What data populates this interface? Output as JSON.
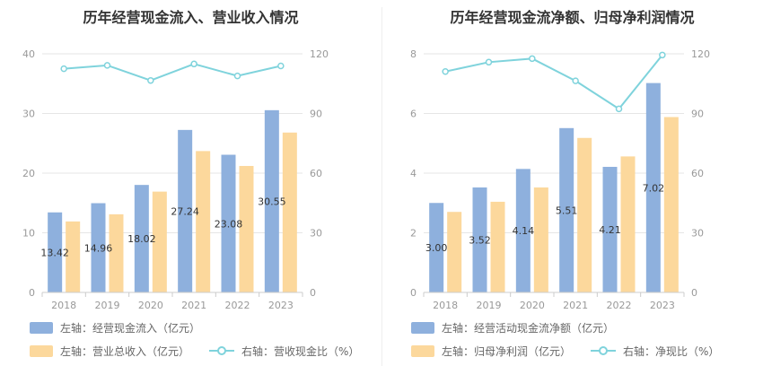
{
  "chart_data": [
    {
      "type": "bar",
      "title": "历年经营现金流入、营业收入情况",
      "categories": [
        "2018",
        "2019",
        "2020",
        "2021",
        "2022",
        "2023"
      ],
      "left_axis": {
        "ticks": [
          "0",
          "10",
          "20",
          "30",
          "40"
        ],
        "ylim": [
          0,
          40
        ]
      },
      "right_axis": {
        "ticks": [
          "0",
          "30",
          "60",
          "90",
          "120"
        ],
        "ylim": [
          0,
          120
        ]
      },
      "grid": true,
      "legend_position": "bottom",
      "series": [
        {
          "name": "左轴：经营现金流入（亿元）",
          "type": "bar",
          "axis": "left",
          "color": "#8eb0dd",
          "values": [
            13.42,
            14.96,
            18.02,
            27.24,
            23.08,
            30.55
          ],
          "labels": [
            "13.42",
            "14.96",
            "18.02",
            "27.24",
            "23.08",
            "30.55"
          ]
        },
        {
          "name": "左轴：营业总收入（亿元）",
          "type": "bar",
          "axis": "left",
          "color": "#fcd89c",
          "values": [
            11.9,
            13.1,
            16.9,
            23.7,
            21.2,
            26.8
          ]
        },
        {
          "name": "右轴：营收现金比（%）",
          "type": "line",
          "axis": "right",
          "color": "#7fd3dc",
          "values": [
            112.5,
            114.2,
            106.6,
            114.9,
            108.9,
            113.9
          ]
        }
      ]
    },
    {
      "type": "bar",
      "title": "历年经营现金流净额、归母净利润情况",
      "categories": [
        "2018",
        "2019",
        "2020",
        "2021",
        "2022",
        "2023"
      ],
      "left_axis": {
        "ticks": [
          "0",
          "2",
          "4",
          "6",
          "8"
        ],
        "ylim": [
          0,
          8
        ]
      },
      "right_axis": {
        "ticks": [
          "0",
          "30",
          "60",
          "90",
          "120"
        ],
        "ylim": [
          0,
          120
        ]
      },
      "grid": true,
      "legend_position": "bottom",
      "series": [
        {
          "name": "左轴：经营活动现金流净额（亿元）",
          "type": "bar",
          "axis": "left",
          "color": "#8eb0dd",
          "values": [
            3.0,
            3.52,
            4.14,
            5.51,
            4.21,
            7.02
          ],
          "labels": [
            "3.00",
            "3.52",
            "4.14",
            "5.51",
            "4.21",
            "7.02"
          ]
        },
        {
          "name": "左轴：归母净利润（亿元）",
          "type": "bar",
          "axis": "left",
          "color": "#fcd89c",
          "values": [
            2.7,
            3.04,
            3.52,
            5.18,
            4.56,
            5.88
          ]
        },
        {
          "name": "右轴：净现比（%）",
          "type": "line",
          "axis": "right",
          "color": "#7fd3dc",
          "values": [
            111.1,
            115.8,
            117.6,
            106.4,
            92.3,
            119.4
          ]
        }
      ]
    }
  ]
}
